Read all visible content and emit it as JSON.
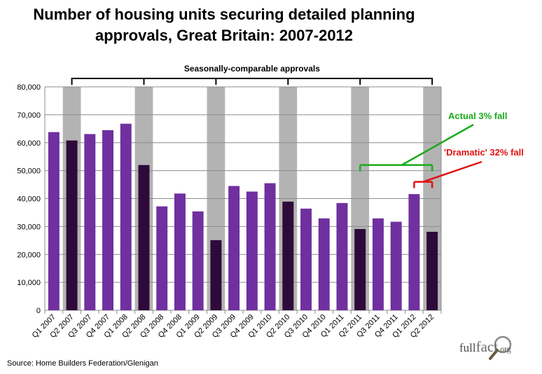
{
  "title_line1": "Number of housing units securing detailed planning",
  "title_line2": "approvals, Great Britain: 2007-2012",
  "source": "Source: Home Builders Federation/Glenigan",
  "logo": {
    "text_a": "full",
    "text_b": "fact",
    "text_c": ".org"
  },
  "chart_data": {
    "type": "bar",
    "categories": [
      "Q1 2007",
      "Q2 2007",
      "Q3 2007",
      "Q4 2007",
      "Q1 2008",
      "Q2 2008",
      "Q3 2008",
      "Q4 2008",
      "Q1 2009",
      "Q2 2009",
      "Q3 2009",
      "Q4 2009",
      "Q1 2010",
      "Q2 2010",
      "Q3 2010",
      "Q4 2010",
      "Q1 2011",
      "Q2 2011",
      "Q3 2011",
      "Q4 2011",
      "Q1 2012",
      "Q2 2012"
    ],
    "values": [
      63800,
      60800,
      63100,
      64500,
      66800,
      52000,
      37200,
      41800,
      35400,
      25100,
      44500,
      42500,
      45500,
      38900,
      36400,
      32900,
      38400,
      29100,
      32900,
      31700,
      41600,
      28100
    ],
    "highlighted_quarter": "Q2",
    "ylim": [
      0,
      80000
    ],
    "yticks": [
      "0",
      "10,000",
      "20,000",
      "30,000",
      "40,000",
      "50,000",
      "60,000",
      "70,000",
      "80,000"
    ],
    "ytick_values": [
      0,
      10000,
      20000,
      30000,
      40000,
      50000,
      60000,
      70000,
      80000
    ],
    "bracket_label": "Seasonally-comparable approvals",
    "annotations": [
      {
        "text": "Actual 3% fall",
        "color": "#1aab1a",
        "from": "Q2 2011",
        "to": "Q2 2012"
      },
      {
        "text": "'Dramatic' 32% fall",
        "color": "#e01010",
        "from": "Q1 2012",
        "to": "Q2 2012"
      }
    ],
    "colors": {
      "bar": "#7030a0",
      "highlight_bar": "#2e0a3a",
      "shade": "#b3b3b3"
    },
    "grid": true,
    "legend": "none"
  }
}
